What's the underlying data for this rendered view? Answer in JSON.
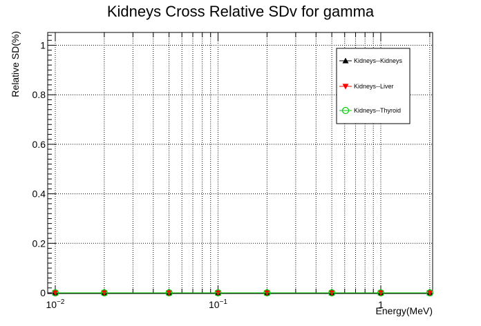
{
  "chart_data": {
    "type": "scatter",
    "title": "Kidneys Cross Relative SDv for gamma",
    "xlabel": "Energy(MeV)",
    "ylabel": "Relative SD(%)",
    "xscale": "log",
    "xlim": [
      0.01,
      2
    ],
    "ylim": [
      0,
      1.05
    ],
    "grid": true,
    "legend_position": "top-right",
    "x_tick_labels": [
      {
        "value": 0.01,
        "base": "10",
        "exp": "−2"
      },
      {
        "value": 0.1,
        "base": "10",
        "exp": "−1"
      },
      {
        "value": 1,
        "base": "1",
        "exp": ""
      }
    ],
    "y_ticks": [
      0,
      0.2,
      0.4,
      0.6,
      0.8,
      1
    ],
    "y_tick_labels": [
      "0",
      "0.2",
      "0.4",
      "0.6",
      "0.8",
      "1"
    ],
    "x": [
      0.01,
      0.02,
      0.05,
      0.1,
      0.2,
      0.5,
      1,
      2
    ],
    "series": [
      {
        "name": "Kidneys--Kidneys",
        "marker": "triangle-up",
        "color": "#000000",
        "values": [
          0,
          0,
          0,
          0,
          0,
          0,
          0,
          0
        ]
      },
      {
        "name": "Kidneys--Liver",
        "marker": "triangle-down",
        "color": "#ff0000",
        "values": [
          0,
          0,
          0,
          0,
          0,
          0,
          0,
          0
        ]
      },
      {
        "name": "Kidneys--Thyroid",
        "marker": "open-circle",
        "color": "#00cc00",
        "values": [
          0,
          0,
          0,
          0,
          0,
          0,
          0,
          0
        ]
      }
    ]
  }
}
